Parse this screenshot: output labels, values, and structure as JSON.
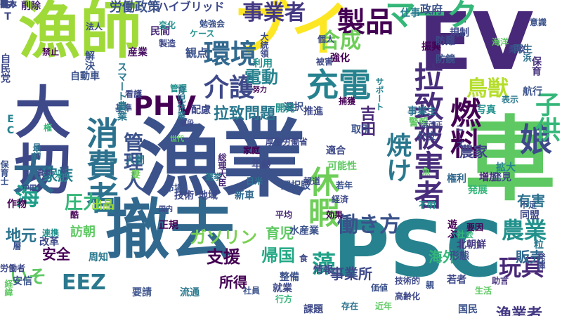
{
  "words": [
    {
      "text": "漁業",
      "color": "#3b528b"
    },
    {
      "text": "漁師",
      "color": "#a0da39"
    },
    {
      "text": "撤去",
      "color": "#31688e"
    },
    {
      "text": "PSC",
      "color": "#26828e"
    },
    {
      "text": "EV",
      "color": "#482878"
    },
    {
      "text": "車",
      "color": "#5ec962"
    },
    {
      "text": "ブイ",
      "color": "#fde725"
    },
    {
      "text": "大切",
      "color": "#3e4989"
    },
    {
      "text": "マーク",
      "color": "#35b779"
    },
    {
      "text": "製品",
      "color": "#440154"
    },
    {
      "text": "環境",
      "color": "#31688e"
    },
    {
      "text": "充電",
      "color": "#26828e"
    },
    {
      "text": "事業者",
      "color": "#443983"
    },
    {
      "text": "合成",
      "color": "#6ece58"
    },
    {
      "text": "介護",
      "color": "#3e4989"
    },
    {
      "text": "PHV",
      "color": "#440154"
    },
    {
      "text": "燃料",
      "color": "#440154"
    },
    {
      "text": "鳥獣",
      "color": "#b5de2b"
    },
    {
      "text": "電動",
      "color": "#26828e"
    },
    {
      "text": "拉致問題",
      "color": "#2a788e"
    },
    {
      "text": "拉致被害者",
      "color": "#472d7b"
    },
    {
      "text": "焼け",
      "color": "#2a788e"
    },
    {
      "text": "娘",
      "color": "#3e4989"
    },
    {
      "text": "子供",
      "color": "#35b779"
    },
    {
      "text": "休暇",
      "color": "#6ece58"
    },
    {
      "text": "働き方",
      "color": "#3b528b"
    },
    {
      "text": "農業",
      "color": "#21918c"
    },
    {
      "text": "玩具",
      "color": "#482878"
    },
    {
      "text": "消費者",
      "color": "#2c728e"
    },
    {
      "text": "管理人",
      "color": "#3b528b"
    },
    {
      "text": "大",
      "color": "#31688e"
    },
    {
      "text": "海",
      "color": "#1f9e89"
    },
    {
      "text": "地元",
      "color": "#2c728e"
    },
    {
      "text": "圧力",
      "color": "#35b779"
    },
    {
      "text": "ガソリン",
      "color": "#7ad151"
    },
    {
      "text": "EEZ",
      "color": "#2a788e"
    },
    {
      "text": "いそ",
      "color": "#5ec962"
    },
    {
      "text": "支援",
      "color": "#440154"
    },
    {
      "text": "帰国",
      "color": "#22a884"
    },
    {
      "text": "農家",
      "color": "#414487"
    },
    {
      "text": "家族",
      "color": "#26828e"
    },
    {
      "text": "育児",
      "color": "#5ec962"
    },
    {
      "text": "藻",
      "color": "#1fa188"
    },
    {
      "text": "販売",
      "color": "#31688e"
    },
    {
      "text": "漁業者",
      "color": "#443983"
    },
    {
      "text": "有害",
      "color": "#2c728e"
    },
    {
      "text": "吉田",
      "color": "#482878"
    },
    {
      "text": "所得",
      "color": "#440154"
    },
    {
      "text": "安全",
      "color": "#440154"
    },
    {
      "text": "海外",
      "color": "#35b779"
    },
    {
      "text": "事業所",
      "color": "#3e4989"
    },
    {
      "text": "水産業",
      "color": "#3b528b"
    },
    {
      "text": "訪朝",
      "color": "#5ec962"
    },
    {
      "text": "出品",
      "color": "#a0da39"
    },
    {
      "text": "労働政策",
      "color": "#3b528b"
    },
    {
      "text": "ハイブリッド",
      "color": "#3e4989"
    },
    {
      "text": "仕事",
      "color": "#287c8e"
    },
    {
      "text": "政府",
      "color": "#3b528b"
    },
    {
      "text": "規制",
      "color": "#3e4989"
    },
    {
      "text": "振興",
      "color": "#440154"
    },
    {
      "text": "再生",
      "color": "#31688e"
    },
    {
      "text": "保育",
      "color": "#46327e"
    },
    {
      "text": "削除",
      "color": "#482878"
    },
    {
      "text": "観点",
      "color": "#3b528b"
    },
    {
      "text": "産業",
      "color": "#471063"
    },
    {
      "text": "民間",
      "color": "#482878"
    },
    {
      "text": "取引",
      "color": "#3b528b"
    },
    {
      "text": "新車",
      "color": "#31688e"
    },
    {
      "text": "技術",
      "color": "#3e4989"
    },
    {
      "text": "地域",
      "color": "#3e4989"
    },
    {
      "text": "正規",
      "color": "#440154"
    },
    {
      "text": "選択肢",
      "color": "#3b528b"
    },
    {
      "text": "適合",
      "color": "#3e4989"
    },
    {
      "text": "可能性",
      "color": "#5ec962"
    },
    {
      "text": "日米",
      "color": "#2c728e"
    },
    {
      "text": "若年",
      "color": "#3b528b"
    },
    {
      "text": "報道",
      "color": "#3e4989"
    },
    {
      "text": "増加",
      "color": "#482878"
    },
    {
      "text": "拡大",
      "color": "#26828e"
    },
    {
      "text": "発見",
      "color": "#3e4989"
    },
    {
      "text": "外交",
      "color": "#3b528b"
    },
    {
      "text": "権利",
      "color": "#31688e"
    },
    {
      "text": "発展",
      "color": "#35b779"
    },
    {
      "text": "平均",
      "color": "#482878"
    },
    {
      "text": "効果",
      "color": "#440154"
    },
    {
      "text": "経済",
      "color": "#3e4989"
    },
    {
      "text": "防難",
      "color": "#3e4989"
    },
    {
      "text": "防鏡",
      "color": "#3b528b"
    },
    {
      "text": "写真",
      "color": "#21918c"
    },
    {
      "text": "航行",
      "color": "#3b528b"
    },
    {
      "text": "表示",
      "color": "#2a788e"
    },
    {
      "text": "北朝鮮",
      "color": "#443983"
    },
    {
      "text": "社会",
      "color": "#35b779"
    },
    {
      "text": "要因",
      "color": "#440154"
    },
    {
      "text": "同盟",
      "color": "#3e4989"
    },
    {
      "text": "形態",
      "color": "#3e4989"
    },
    {
      "text": "粒",
      "color": "#2a788e"
    },
    {
      "text": "助言",
      "color": "#46327e"
    },
    {
      "text": "生活",
      "color": "#5ec962"
    },
    {
      "text": "国民",
      "color": "#3b528b"
    },
    {
      "text": "課題",
      "color": "#3e4989"
    },
    {
      "text": "存在",
      "color": "#2c728e"
    },
    {
      "text": "近年",
      "color": "#5ec962"
    },
    {
      "text": "整備",
      "color": "#3b528b"
    },
    {
      "text": "就業",
      "color": "#3e4989"
    },
    {
      "text": "流通",
      "color": "#2a788e"
    },
    {
      "text": "要請",
      "color": "#3b528b"
    },
    {
      "text": "周知",
      "color": "#2a788e"
    },
    {
      "text": "連携",
      "color": "#21918c"
    },
    {
      "text": "改革",
      "color": "#3e4989"
    },
    {
      "text": "安信",
      "color": "#3b528b"
    },
    {
      "text": "労働者",
      "color": "#3e4989"
    },
    {
      "text": "作物",
      "color": "#440154"
    },
    {
      "text": "中国",
      "color": "#3e4989"
    },
    {
      "text": "社員",
      "color": "#3b528b"
    },
    {
      "text": "行方",
      "color": "#35b779"
    },
    {
      "text": "国内",
      "color": "#3e4989"
    },
    {
      "text": "不明",
      "color": "#21918c"
    },
    {
      "text": "不足",
      "color": "#3b528b"
    },
    {
      "text": "配慮",
      "color": "#3e4989"
    },
    {
      "text": "看護",
      "color": "#3e4989"
    },
    {
      "text": "基準",
      "color": "#3b528b"
    },
    {
      "text": "人間",
      "color": "#2a788e"
    },
    {
      "text": "捕獲",
      "color": "#440154"
    },
    {
      "text": "選択",
      "color": "#3b528b"
    },
    {
      "text": "推進",
      "color": "#3e4989"
    },
    {
      "text": "開発",
      "color": "#21918c"
    },
    {
      "text": "事業主",
      "color": "#2c728e"
    },
    {
      "text": "警報",
      "color": "#5ec962"
    },
    {
      "text": "強化",
      "color": "#440154"
    },
    {
      "text": "被害",
      "color": "#3e4989"
    },
    {
      "text": "利用",
      "color": "#21918c"
    },
    {
      "text": "個人",
      "color": "#3e4989"
    },
    {
      "text": "海洋",
      "color": "#5ec962"
    },
    {
      "text": "柔軟",
      "color": "#3e4989"
    },
    {
      "text": "意識",
      "color": "#3b528b"
    },
    {
      "text": "年齢",
      "color": "#3e4989"
    },
    {
      "text": "選挙",
      "color": "#2a788e"
    },
    {
      "text": "妻",
      "color": "#6ece58"
    },
    {
      "text": "家庭",
      "color": "#440154"
    },
    {
      "text": "禁止",
      "color": "#440154"
    },
    {
      "text": "法人",
      "color": "#3e4989"
    },
    {
      "text": "変化",
      "color": "#21918c"
    },
    {
      "text": "市場",
      "color": "#3b528b"
    },
    {
      "text": "管理",
      "color": "#21918c"
    },
    {
      "text": "努力",
      "color": "#440154"
    },
    {
      "text": "値段",
      "color": "#3e4989"
    },
    {
      "text": "世代",
      "color": "#5ec962"
    },
    {
      "text": "解決",
      "color": "#3b528b"
    },
    {
      "text": "情報",
      "color": "#3e4989"
    },
    {
      "text": "自動車",
      "color": "#3b528b"
    },
    {
      "text": "ST",
      "color": "#3e4989"
    },
    {
      "text": "EC",
      "color": "#26828e"
    },
    {
      "text": "保育士",
      "color": "#3b528b"
    },
    {
      "text": "自民党",
      "color": "#3e4989"
    },
    {
      "text": "食料",
      "color": "#3e4989"
    },
    {
      "text": "スマート農業",
      "color": "#2a788e"
    },
    {
      "text": "若者",
      "color": "#3e4989"
    },
    {
      "text": "遊ぶ",
      "color": "#440154"
    },
    {
      "text": "浜",
      "color": "#2c728e"
    },
    {
      "text": "魚",
      "color": "#5ec962"
    },
    {
      "text": "ニーズ",
      "color": "#3e4989"
    },
    {
      "text": "サポート",
      "color": "#26828e"
    },
    {
      "text": "総理大臣",
      "color": "#482878"
    },
    {
      "text": "大統領",
      "color": "#3e4989"
    },
    {
      "text": "育児休業",
      "color": "#2a788e"
    },
    {
      "text": "厚生労働省",
      "color": "#3e4989"
    },
    {
      "text": "勉強会",
      "color": "#3b528b"
    },
    {
      "text": "ケース",
      "color": "#21918c"
    },
    {
      "text": "製造",
      "color": "#3e4989"
    },
    {
      "text": "発揮",
      "color": "#3e4989"
    },
    {
      "text": "層",
      "color": "#3b528b"
    },
    {
      "text": "食",
      "color": "#3e4989"
    },
    {
      "text": "価値",
      "color": "#3b528b"
    },
    {
      "text": "活改正",
      "color": "#3e4989"
    },
    {
      "text": "経緯",
      "color": "#5ec962"
    },
    {
      "text": "権",
      "color": "#35b779"
    },
    {
      "text": "最初",
      "color": "#2c728e"
    },
    {
      "text": "米",
      "color": "#21918c"
    },
    {
      "text": "技術的",
      "color": "#3e4989"
    },
    {
      "text": "親",
      "color": "#3b528b"
    },
    {
      "text": "高齢化",
      "color": "#3e4989"
    },
    {
      "text": "調",
      "color": "#3b528b"
    },
    {
      "text": "酷",
      "color": "#440154"
    },
    {
      "text": "強み",
      "color": "#3e4989"
    },
    {
      "text": "日本",
      "color": "#3e4989"
    },
    {
      "text": "家",
      "color": "#3b528b"
    },
    {
      "text": "間",
      "color": "#3e4989"
    }
  ]
}
